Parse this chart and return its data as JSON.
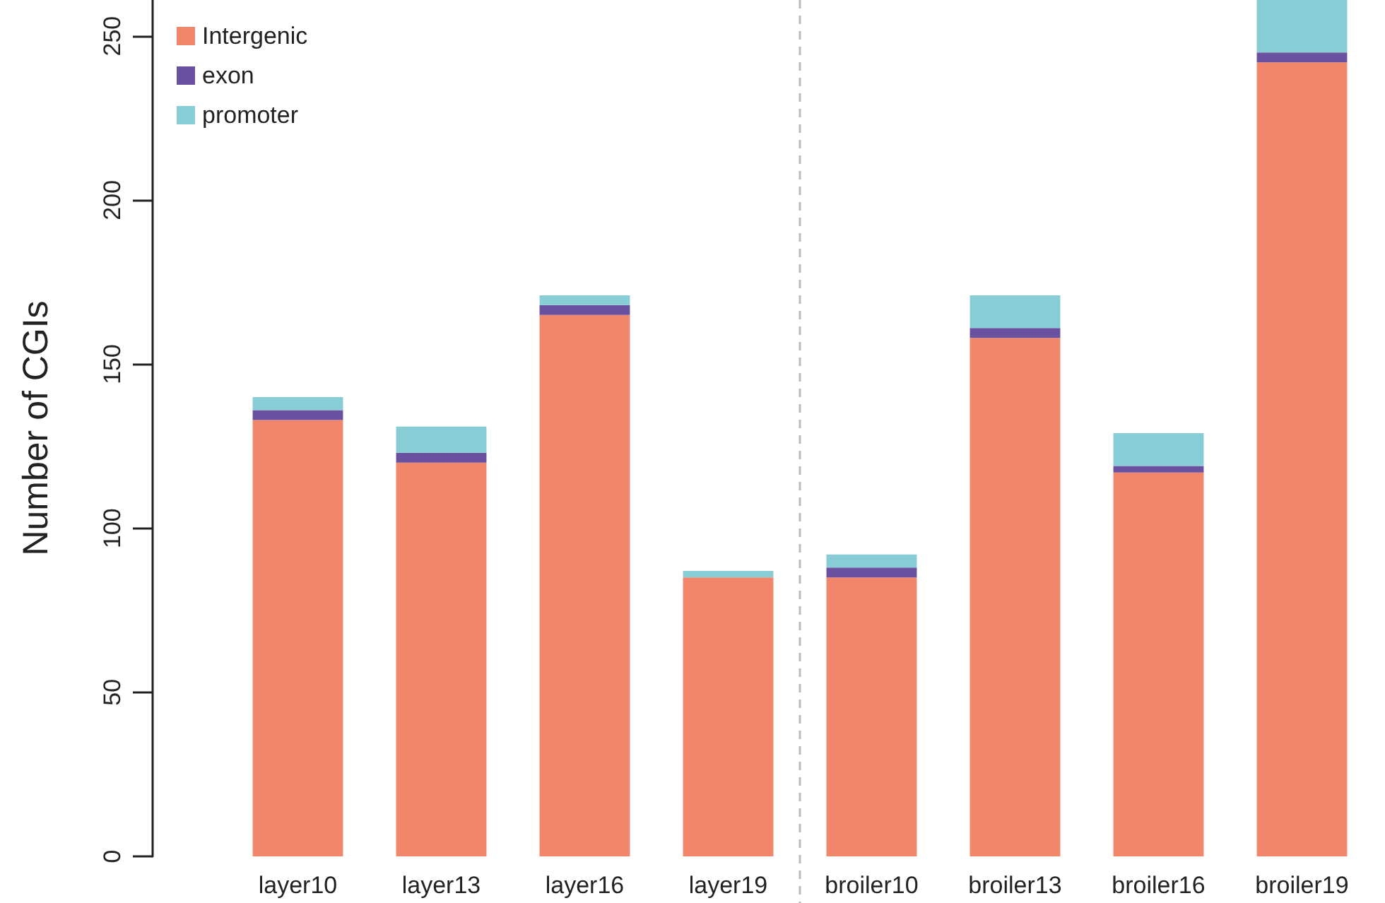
{
  "chart_data": {
    "type": "bar",
    "stacked": true,
    "ylabel": "Number of CGIs",
    "categories": [
      "layer10",
      "layer13",
      "layer16",
      "layer19",
      "broiler10",
      "broiler13",
      "broiler16",
      "broiler19"
    ],
    "series": [
      {
        "name": "Intergenic",
        "color": "#f1866a",
        "values": [
          133,
          120,
          165,
          85,
          85,
          158,
          117,
          242
        ]
      },
      {
        "name": "exon",
        "color": "#6a51a0",
        "values": [
          3,
          3,
          3,
          0,
          3,
          3,
          2,
          3
        ]
      },
      {
        "name": "promoter",
        "color": "#88ccd6",
        "values": [
          4,
          8,
          3,
          2,
          4,
          10,
          10,
          16
        ]
      }
    ],
    "ylim": [
      0,
      261
    ],
    "yticks": [
      0,
      50,
      100,
      150,
      200,
      250
    ],
    "grid": false,
    "legend": "top left"
  }
}
